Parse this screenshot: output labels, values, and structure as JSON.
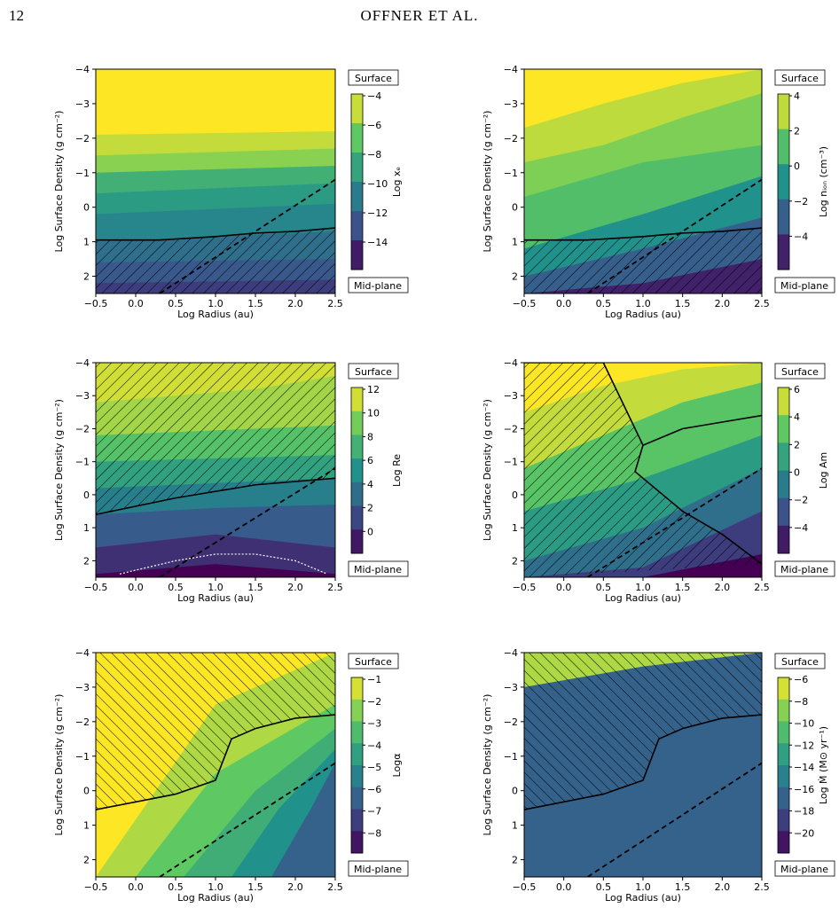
{
  "page": {
    "number": "12",
    "running_head": "OFFNER ET AL."
  },
  "chart_data": [
    {
      "type": "heatmap",
      "id": "xe",
      "xlabel": "Log Radius (au)",
      "ylabel": "Log Surface Density (g cm⁻²)",
      "xlim": [
        -0.5,
        2.5
      ],
      "ylim": [
        -4,
        2.5
      ],
      "xticks": [
        "-0.5",
        "0.0",
        "0.5",
        "1.0",
        "1.5",
        "2.0",
        "2.5"
      ],
      "yticks": [
        "-4",
        "-3",
        "-2",
        "-1",
        "0",
        "1",
        "2"
      ],
      "cbar_label": "Log xₑ",
      "cbar_ticks": [
        "-4",
        "-6",
        "-8",
        "-10",
        "-12",
        "-14"
      ],
      "cbar_range": [
        -15,
        -4
      ],
      "surface_label": "Surface",
      "midplane_label": "Mid-plane",
      "colormap": "viridis",
      "bands": [
        {
          "x": [
            -0.5,
            2.5
          ],
          "y": [
            -2.1,
            -2.2
          ]
        },
        {
          "x": [
            -0.5,
            2.5
          ],
          "y": [
            -1.5,
            -1.7
          ]
        },
        {
          "x": [
            -0.5,
            2.5
          ],
          "y": [
            -1.0,
            -1.2
          ]
        },
        {
          "x": [
            -0.5,
            2.5
          ],
          "y": [
            -0.4,
            -0.7
          ]
        },
        {
          "x": [
            -0.5,
            2.5
          ],
          "y": [
            0.2,
            -0.1
          ]
        },
        {
          "x": [
            -0.5,
            2.5
          ],
          "y": [
            1.0,
            0.7
          ]
        },
        {
          "x": [
            -0.5,
            2.5
          ],
          "y": [
            1.6,
            1.5
          ]
        },
        {
          "x": [
            -0.5,
            2.5
          ],
          "y": [
            2.2,
            2.1
          ]
        }
      ],
      "band_values": [
        -4,
        -5,
        -6,
        -8,
        -9,
        -10,
        -11,
        -12,
        -13,
        -14
      ],
      "hatch_boundary": {
        "x": [
          -0.5,
          0.3,
          1.0,
          1.5,
          2.0,
          2.5
        ],
        "y": [
          0.95,
          0.95,
          0.85,
          0.75,
          0.7,
          0.6
        ]
      },
      "hatch_side": "below",
      "hatch_dir": "right",
      "dashed": {
        "x": [
          0.3,
          2.5
        ],
        "y": [
          2.5,
          -0.8
        ]
      },
      "dotted": null
    },
    {
      "type": "heatmap",
      "id": "nion",
      "xlabel": "Log Radius (au)",
      "ylabel": "Log Surface Density (g cm⁻²)",
      "xlim": [
        -0.5,
        2.5
      ],
      "ylim": [
        -4,
        2.5
      ],
      "xticks": [
        "-0.5",
        "0.0",
        "0.5",
        "1.0",
        "1.5",
        "2.0",
        "2.5"
      ],
      "yticks": [
        "-4",
        "-3",
        "-2",
        "-1",
        "0",
        "1",
        "2"
      ],
      "cbar_label": "Log nᵢₒₙ (cm⁻³)",
      "cbar_ticks": [
        "4",
        "2",
        "0",
        "-2",
        "-4"
      ],
      "cbar_range": [
        -5,
        5
      ],
      "surface_label": "Surface",
      "midplane_label": "Mid-plane",
      "colormap": "viridis",
      "bands": [
        {
          "x": [
            -0.5,
            0.5,
            1.5,
            2.5
          ],
          "y": [
            -2.3,
            -3.0,
            -3.6,
            -4.0
          ]
        },
        {
          "x": [
            -0.5,
            0.5,
            1.5,
            2.5
          ],
          "y": [
            -1.3,
            -1.8,
            -2.6,
            -3.3
          ]
        },
        {
          "x": [
            -0.5,
            1.0,
            2.5
          ],
          "y": [
            -0.3,
            -1.3,
            -1.8
          ]
        },
        {
          "x": [
            -0.5,
            1.0,
            2.5
          ],
          "y": [
            1.2,
            0.2,
            -0.9
          ]
        },
        {
          "x": [
            -0.5,
            1.0,
            2.5
          ],
          "y": [
            2.0,
            1.2,
            0.3
          ]
        },
        {
          "x": [
            -0.5,
            1.0,
            2.5
          ],
          "y": [
            2.5,
            2.2,
            1.5
          ]
        }
      ],
      "band_values": [
        5,
        4,
        3,
        2,
        0,
        -2,
        -4
      ],
      "hatch_boundary": {
        "x": [
          -0.5,
          0.3,
          1.0,
          1.5,
          2.0,
          2.5
        ],
        "y": [
          0.95,
          0.95,
          0.85,
          0.75,
          0.7,
          0.6
        ]
      },
      "hatch_side": "below",
      "hatch_dir": "right",
      "dashed": {
        "x": [
          0.3,
          2.5
        ],
        "y": [
          2.5,
          -0.8
        ]
      },
      "dotted": null
    },
    {
      "type": "heatmap",
      "id": "re",
      "xlabel": "Log Radius (au)",
      "ylabel": "Log Surface Density (g cm⁻²)",
      "xlim": [
        -0.5,
        2.5
      ],
      "ylim": [
        -4,
        2.5
      ],
      "xticks": [
        "-0.5",
        "0.0",
        "0.5",
        "1.0",
        "1.5",
        "2.0",
        "2.5"
      ],
      "yticks": [
        "-4",
        "-3",
        "-2",
        "-1",
        "0",
        "1",
        "2"
      ],
      "cbar_label": "Log Re",
      "cbar_ticks": [
        "12",
        "10",
        "8",
        "6",
        "4",
        "2",
        "0"
      ],
      "cbar_range": [
        -1,
        13
      ],
      "surface_label": "Surface",
      "midplane_label": "Mid-plane",
      "colormap": "viridis",
      "bands": [
        {
          "x": [
            -0.5,
            1.5,
            2.5
          ],
          "y": [
            -2.8,
            -3.2,
            -3.6
          ]
        },
        {
          "x": [
            -0.5,
            2.5
          ],
          "y": [
            -1.8,
            -2.1
          ]
        },
        {
          "x": [
            -0.5,
            2.5
          ],
          "y": [
            -1.0,
            -1.2
          ]
        },
        {
          "x": [
            -0.5,
            2.5
          ],
          "y": [
            -0.2,
            -0.5
          ]
        },
        {
          "x": [
            -0.5,
            1.0,
            2.5
          ],
          "y": [
            0.6,
            0.4,
            0.3
          ]
        },
        {
          "x": [
            -0.5,
            1.0,
            2.5
          ],
          "y": [
            1.6,
            1.2,
            1.6
          ]
        },
        {
          "x": [
            -0.5,
            1.0,
            2.5
          ],
          "y": [
            2.4,
            2.1,
            2.4
          ]
        }
      ],
      "band_values": [
        12,
        11,
        9,
        7,
        5,
        3,
        1,
        -1
      ],
      "hatch_boundary": {
        "x": [
          -0.5,
          0.5,
          1.5,
          2.5
        ],
        "y": [
          0.6,
          0.1,
          -0.3,
          -0.5
        ]
      },
      "hatch_side": "above",
      "hatch_dir": "right",
      "dashed": {
        "x": [
          0.3,
          2.5
        ],
        "y": [
          2.5,
          -0.8
        ]
      },
      "dotted": {
        "x": [
          -0.2,
          0.5,
          1.0,
          1.5,
          2.0,
          2.4
        ],
        "y": [
          2.4,
          2.0,
          1.8,
          1.8,
          2.0,
          2.4
        ]
      }
    },
    {
      "type": "heatmap",
      "id": "am",
      "xlabel": "Log Radius (au)",
      "ylabel": "Log Surface Density (g cm⁻²)",
      "xlim": [
        -0.5,
        2.5
      ],
      "ylim": [
        -4,
        2.5
      ],
      "xticks": [
        "-0.5",
        "0.0",
        "0.5",
        "1.0",
        "1.5",
        "2.0",
        "2.5"
      ],
      "yticks": [
        "-4",
        "-3",
        "-2",
        "-1",
        "0",
        "1",
        "2"
      ],
      "cbar_label": "Log Am",
      "cbar_ticks": [
        "6",
        "4",
        "2",
        "0",
        "-2",
        "-4"
      ],
      "cbar_range": [
        -5,
        6
      ],
      "surface_label": "Surface",
      "midplane_label": "Mid-plane",
      "colormap": "viridis",
      "bands": [
        {
          "x": [
            -0.5,
            0.5,
            1.5,
            2.5
          ],
          "y": [
            -2.5,
            -3.3,
            -3.8,
            -4.0
          ]
        },
        {
          "x": [
            -0.5,
            0.5,
            1.5,
            2.5
          ],
          "y": [
            -0.8,
            -1.8,
            -2.8,
            -3.4
          ]
        },
        {
          "x": [
            -0.5,
            1.0,
            2.5
          ],
          "y": [
            0.5,
            -0.5,
            -1.8
          ]
        },
        {
          "x": [
            -0.5,
            1.0,
            2.5
          ],
          "y": [
            2.0,
            1.0,
            -0.8
          ]
        },
        {
          "x": [
            -0.5,
            1.0,
            2.5
          ],
          "y": [
            2.5,
            2.2,
            0.5
          ]
        },
        {
          "x": [
            -0.5,
            1.0,
            2.5
          ],
          "y": [
            2.5,
            2.5,
            1.8
          ]
        }
      ],
      "band_values": [
        6,
        5,
        3,
        1,
        -1,
        -3,
        -5
      ],
      "hatch_boundary": {
        "x": [
          -0.5,
          0.5,
          1.0,
          0.9,
          1.5,
          2.0,
          2.5
        ],
        "y": [
          -4,
          -4,
          -1.5,
          -0.7,
          0.5,
          1.2,
          2.1
        ]
      },
      "hatch_side": "left",
      "hatch_dir": "right",
      "hatch_boundary2": {
        "x": [
          1.0,
          1.5,
          2.0,
          2.5
        ],
        "y": [
          -1.5,
          -2.0,
          -2.2,
          -2.4
        ]
      },
      "dashed": {
        "x": [
          0.3,
          2.5
        ],
        "y": [
          2.5,
          -0.8
        ]
      },
      "dotted": null
    },
    {
      "type": "heatmap",
      "id": "alpha",
      "xlabel": "Log Radius (au)",
      "ylabel": "Log Surface Density (g cm⁻²)",
      "xlim": [
        -0.5,
        2.5
      ],
      "ylim": [
        -4,
        2.5
      ],
      "xticks": [
        "-0.5",
        "0.0",
        "0.5",
        "1.0",
        "1.5",
        "2.0",
        "2.5"
      ],
      "yticks": [
        "-4",
        "-3",
        "-2",
        "-1",
        "0",
        "1",
        "2"
      ],
      "cbar_label": "Logα",
      "cbar_ticks": [
        "-1",
        "-2",
        "-3",
        "-4",
        "-5",
        "-6",
        "-7",
        "-8"
      ],
      "cbar_range": [
        -8.5,
        -0.5
      ],
      "surface_label": "Surface",
      "midplane_label": "Mid-plane",
      "colormap": "viridis",
      "bands": [
        {
          "x": [
            -0.5,
            1.0,
            2.5
          ],
          "y": [
            2.5,
            -2.5,
            -4.0
          ]
        },
        {
          "x": [
            0.0,
            1.0,
            2.5
          ],
          "y": [
            2.5,
            -0.5,
            -2.5
          ]
        },
        {
          "x": [
            0.6,
            1.5,
            2.5
          ],
          "y": [
            2.5,
            0.0,
            -1.8
          ]
        },
        {
          "x": [
            1.2,
            1.8,
            2.5
          ],
          "y": [
            2.5,
            0.5,
            -1.2
          ]
        },
        {
          "x": [
            1.7,
            2.2,
            2.5
          ],
          "y": [
            2.5,
            0.5,
            -0.8
          ]
        }
      ],
      "band_values": [
        -0.5,
        -1.5,
        -2.5,
        -3.5,
        -4.5,
        -6
      ],
      "hatch_boundary": {
        "x": [
          -0.5,
          0.5,
          1.0,
          1.2,
          1.5,
          2.0,
          2.5
        ],
        "y": [
          0.55,
          0.1,
          -0.3,
          -1.5,
          -1.8,
          -2.1,
          -2.2
        ]
      },
      "hatch_side": "above",
      "hatch_dir": "left",
      "dashed": {
        "x": [
          0.3,
          2.5
        ],
        "y": [
          2.5,
          -0.8
        ]
      },
      "dotted": null
    },
    {
      "type": "heatmap",
      "id": "mdot",
      "xlabel": "Log Radius (au)",
      "ylabel": "Log Surface Density (g cm⁻²)",
      "xlim": [
        -0.5,
        2.5
      ],
      "ylim": [
        -4,
        2.5
      ],
      "xticks": [
        "-0.5",
        "0.0",
        "0.5",
        "1.0",
        "1.5",
        "2.0",
        "2.5"
      ],
      "yticks": [
        "-4",
        "-3",
        "-2",
        "-1",
        "0",
        "1",
        "2"
      ],
      "cbar_label": "Log Ṁ (M⊙ yr⁻¹)",
      "cbar_ticks": [
        "-6",
        "-8",
        "-10",
        "-12",
        "-14",
        "-16",
        "-18",
        "-20"
      ],
      "cbar_range": [
        -21,
        -5
      ],
      "surface_label": "Surface",
      "midplane_label": "Mid-plane",
      "colormap": "viridis",
      "bands": [
        {
          "x": [
            -0.5,
            1.0,
            2.5
          ],
          "y": [
            1.5,
            0.9,
            -0.2
          ]
        },
        {
          "x": [
            -0.5,
            1.0,
            2.5
          ],
          "y": [
            0.2,
            -0.8,
            -1.8
          ]
        },
        {
          "x": [
            -0.5,
            1.0,
            2.5
          ],
          "y": [
            -1.5,
            -2.5,
            -3.0
          ]
        },
        {
          "x": [
            -0.5,
            1.0,
            2.5
          ],
          "y": [
            -3.0,
            -3.6,
            -4.0
          ]
        }
      ],
      "band_values": [
        -7,
        -10,
        -13,
        -15,
        -16
      ],
      "hatch_boundary": {
        "x": [
          -0.5,
          0.5,
          1.0,
          1.2,
          1.5,
          2.0,
          2.5
        ],
        "y": [
          0.55,
          0.1,
          -0.3,
          -1.5,
          -1.8,
          -2.1,
          -2.2
        ]
      },
      "hatch_side": "above",
      "hatch_dir": "left",
      "dashed": {
        "x": [
          0.3,
          2.5
        ],
        "y": [
          2.5,
          -0.8
        ]
      },
      "dotted": null
    }
  ]
}
